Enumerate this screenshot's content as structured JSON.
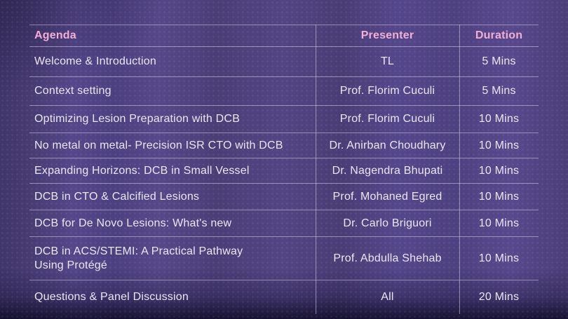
{
  "table": {
    "headers": {
      "agenda": "Agenda",
      "presenter": "Presenter",
      "duration": "Duration"
    },
    "rows": [
      {
        "agenda": "Welcome & Introduction",
        "presenter": "TL",
        "duration": "5 Mins"
      },
      {
        "agenda": "Context setting",
        "presenter": "Prof. Florim Cuculi",
        "duration": "5 Mins"
      },
      {
        "agenda": "Optimizing Lesion Preparation with DCB",
        "presenter": "Prof. Florim Cuculi",
        "duration": "10 Mins"
      },
      {
        "agenda": "No metal on metal- Precision ISR CTO with DCB",
        "presenter": "Dr. Anirban Choudhary",
        "duration": "10 Mins"
      },
      {
        "agenda": "Expanding Horizons: DCB in Small Vessel",
        "presenter": "Dr. Nagendra Bhupati",
        "duration": "10 Mins"
      },
      {
        "agenda": "DCB in CTO & Calcified Lesions",
        "presenter": "Prof. Mohaned Egred",
        "duration": "10 Mins"
      },
      {
        "agenda": "DCB for De Novo Lesions: What's new",
        "presenter": "Dr. Carlo Briguori",
        "duration": "10 Mins"
      },
      {
        "agenda": "DCB in ACS/STEMI: A Practical Pathway\nUsing Protégé",
        "presenter": "Prof. Abdulla Shehab",
        "duration": "10 Mins"
      },
      {
        "agenda": "Questions & Panel Discussion",
        "presenter": "All",
        "duration": "20 Mins"
      }
    ]
  },
  "colors": {
    "background": "#4c3f7a",
    "header_text": "#f2aed3",
    "body_text": "#eae7f5",
    "grid_line": "#d4cee4"
  }
}
